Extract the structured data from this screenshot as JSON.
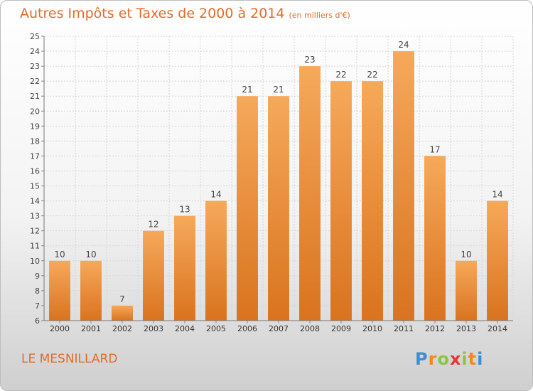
{
  "title": "Autres Impôts et Taxes de 2000 à 2014",
  "unit": "(en milliers d'€)",
  "town": "LE MESNILLARD",
  "logo": {
    "letters": [
      "P",
      "r",
      "o",
      "x",
      "i",
      "t",
      "i"
    ],
    "colors": [
      "#3b8ed6",
      "#f08a1c",
      "#8cc63f",
      "#e53935",
      "#8cc63f",
      "#f08a1c",
      "#3b8ed6"
    ]
  },
  "colors": {
    "accent": "#e26b2a",
    "bar_top": "#f6a95a",
    "bar_bottom": "#d9731f"
  },
  "chart_data": {
    "type": "bar",
    "title": "Autres Impôts et Taxes de 2000 à 2014",
    "ylabel": "",
    "xlabel": "",
    "categories": [
      "2000",
      "2001",
      "2002",
      "2003",
      "2004",
      "2005",
      "2006",
      "2007",
      "2008",
      "2009",
      "2010",
      "2011",
      "2012",
      "2013",
      "2014"
    ],
    "values": [
      10,
      10,
      7,
      12,
      13,
      14,
      21,
      21,
      23,
      22,
      22,
      24,
      17,
      10,
      14
    ],
    "ylim": [
      6,
      25
    ],
    "yticks": [
      6,
      7,
      8,
      9,
      10,
      11,
      12,
      13,
      14,
      15,
      16,
      17,
      18,
      19,
      20,
      21,
      22,
      23,
      24,
      25
    ],
    "grid": true,
    "data_labels": true
  }
}
